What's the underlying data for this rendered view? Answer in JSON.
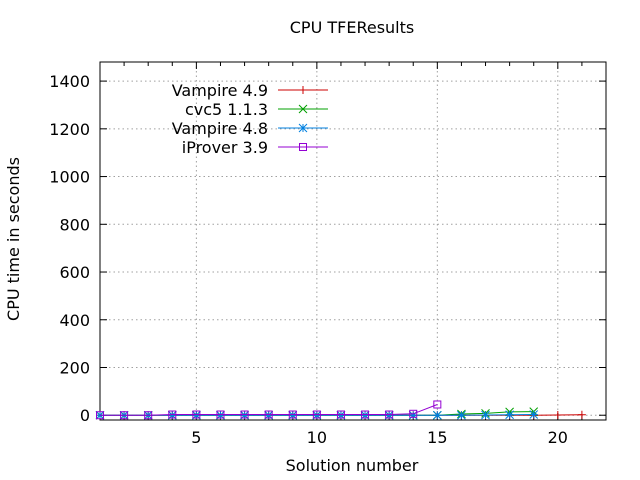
{
  "chart_data": {
    "type": "line",
    "title": "CPU TFEResults",
    "xlabel": "Solution number",
    "ylabel": "CPU time in seconds",
    "xlim": [
      1,
      22
    ],
    "ylim": [
      -20,
      1480
    ],
    "xticks": [
      5,
      10,
      15,
      20
    ],
    "yticks": [
      0,
      200,
      400,
      600,
      800,
      1000,
      1200,
      1400
    ],
    "grid": true,
    "legend_position": "top-left",
    "series": [
      {
        "name": "Vampire 4.9",
        "color": "#cc0000",
        "marker": "plus",
        "x": [
          1,
          2,
          3,
          4,
          5,
          6,
          7,
          8,
          9,
          10,
          11,
          12,
          13,
          14,
          15,
          16,
          17,
          18,
          19,
          20,
          21
        ],
        "y": [
          0,
          0,
          0,
          0,
          0,
          0,
          0,
          0,
          0,
          0,
          0,
          0,
          0,
          0,
          0,
          0,
          0,
          0,
          0,
          1,
          2
        ]
      },
      {
        "name": "cvc5 1.1.3",
        "color": "#00a000",
        "marker": "x",
        "x": [
          1,
          2,
          3,
          4,
          5,
          6,
          7,
          8,
          9,
          10,
          11,
          12,
          13,
          14,
          15,
          16,
          17,
          18,
          19
        ],
        "y": [
          0,
          0,
          0,
          0,
          0,
          0,
          0,
          0,
          0,
          0,
          0,
          0,
          0,
          0,
          0,
          5,
          8,
          14,
          15
        ]
      },
      {
        "name": "Vampire 4.8",
        "color": "#0080e0",
        "marker": "star",
        "x": [
          1,
          2,
          3,
          4,
          5,
          6,
          7,
          8,
          9,
          10,
          11,
          12,
          13,
          14,
          15,
          16,
          17,
          18,
          19
        ],
        "y": [
          0,
          0,
          0,
          0,
          0,
          0,
          0,
          0,
          0,
          0,
          0,
          0,
          0,
          0,
          0,
          0,
          1,
          2,
          3
        ]
      },
      {
        "name": "iProver 3.9",
        "color": "#9400d3",
        "marker": "square",
        "x": [
          1,
          2,
          3,
          4,
          5,
          6,
          7,
          8,
          9,
          10,
          11,
          12,
          13,
          14,
          15
        ],
        "y": [
          0,
          0,
          0,
          3,
          3,
          3,
          3,
          3,
          3,
          3,
          3,
          3,
          3,
          6,
          45
        ]
      }
    ]
  }
}
